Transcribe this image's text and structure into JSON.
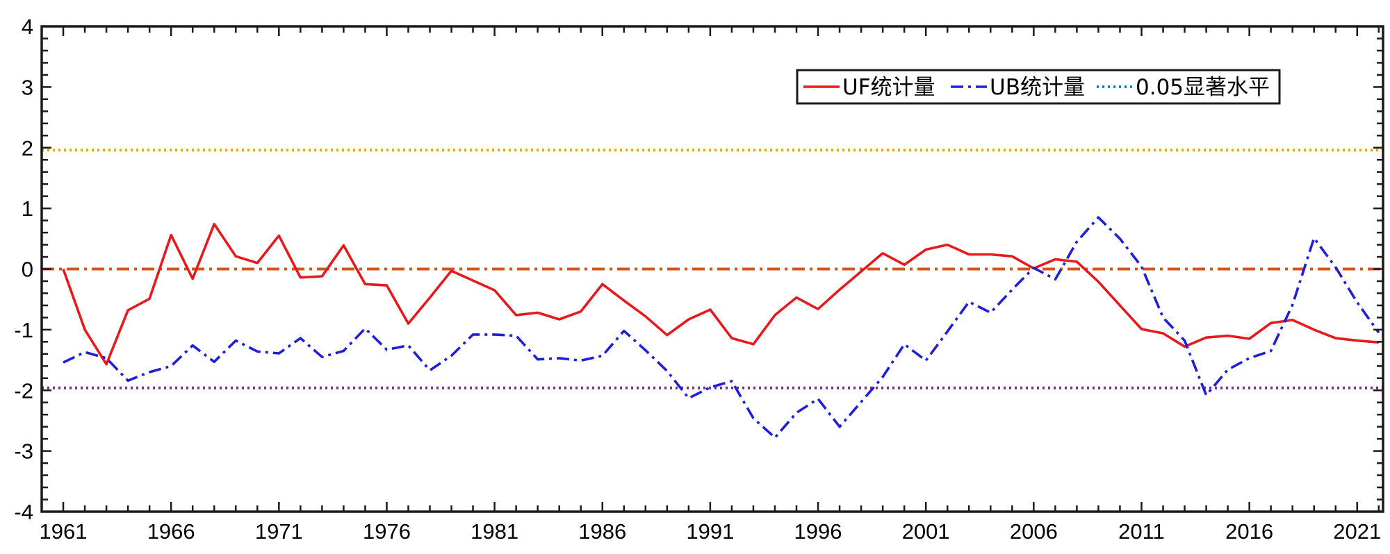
{
  "chart_data": {
    "type": "line",
    "title": "",
    "xlabel": "",
    "ylabel": "",
    "xlim": [
      1960,
      2022.2
    ],
    "ylim": [
      -4,
      4
    ],
    "x_ticks": [
      1961,
      1966,
      1971,
      1976,
      1981,
      1986,
      1991,
      1996,
      2001,
      2006,
      2011,
      2016,
      2021
    ],
    "x_tick_labels": [
      "1961",
      "1966",
      "1971",
      "1976",
      "1981",
      "1986",
      "1991",
      "1996",
      "2001",
      "2006",
      "2011",
      "2016",
      "2021"
    ],
    "y_ticks": [
      -4,
      -3,
      -2,
      -1,
      0,
      1,
      2,
      3,
      4
    ],
    "y_tick_labels": [
      "-4",
      "-3",
      "-2",
      "-1",
      "0",
      "1",
      "2",
      "3",
      "4"
    ],
    "grid": false,
    "legend_position": "top-right",
    "x": [
      1961,
      1962,
      1963,
      1964,
      1965,
      1966,
      1967,
      1968,
      1969,
      1970,
      1971,
      1972,
      1973,
      1974,
      1975,
      1976,
      1977,
      1978,
      1979,
      1980,
      1981,
      1982,
      1983,
      1984,
      1985,
      1986,
      1987,
      1988,
      1989,
      1990,
      1991,
      1992,
      1993,
      1994,
      1995,
      1996,
      1997,
      1998,
      1999,
      2000,
      2001,
      2002,
      2003,
      2004,
      2005,
      2006,
      2007,
      2008,
      2009,
      2010,
      2011,
      2012,
      2013,
      2014,
      2015,
      2016,
      2017,
      2018,
      2019,
      2020,
      2021,
      2022
    ],
    "series": [
      {
        "name": "UF统计量",
        "color": "#e41a1c",
        "style": "solid",
        "values": [
          0.0,
          -1.0,
          -1.57,
          -0.68,
          -0.49,
          0.56,
          -0.16,
          0.74,
          0.21,
          0.1,
          0.55,
          -0.14,
          -0.12,
          0.39,
          -0.25,
          -0.27,
          -0.9,
          -0.47,
          -0.03,
          -0.19,
          -0.35,
          -0.76,
          -0.72,
          -0.83,
          -0.7,
          -0.25,
          -0.52,
          -0.78,
          -1.09,
          -0.83,
          -0.67,
          -1.14,
          -1.24,
          -0.76,
          -0.47,
          -0.66,
          -0.34,
          -0.04,
          0.26,
          0.07,
          0.32,
          0.4,
          0.24,
          0.24,
          0.21,
          0.01,
          0.16,
          0.12,
          -0.21,
          -0.6,
          -0.99,
          -1.06,
          -1.28,
          -1.13,
          -1.1,
          -1.15,
          -0.89,
          -0.84,
          -1.0,
          -1.14,
          -1.18,
          -1.21
        ]
      },
      {
        "name": "UB统计量",
        "color": "#1f1fd6",
        "style": "dashdot",
        "values": [
          -1.54,
          -1.37,
          -1.47,
          -1.84,
          -1.7,
          -1.6,
          -1.26,
          -1.53,
          -1.18,
          -1.36,
          -1.39,
          -1.14,
          -1.45,
          -1.35,
          -0.98,
          -1.33,
          -1.26,
          -1.67,
          -1.43,
          -1.08,
          -1.08,
          -1.1,
          -1.49,
          -1.47,
          -1.51,
          -1.43,
          -1.02,
          -1.34,
          -1.68,
          -2.13,
          -1.95,
          -1.85,
          -2.46,
          -2.78,
          -2.37,
          -2.14,
          -2.6,
          -2.19,
          -1.78,
          -1.24,
          -1.51,
          -1.03,
          -0.54,
          -0.72,
          -0.34,
          0.02,
          -0.17,
          0.45,
          0.85,
          0.5,
          0.04,
          -0.8,
          -1.18,
          -2.08,
          -1.66,
          -1.47,
          -1.35,
          -0.59,
          0.51,
          0.03,
          -0.55,
          -1.05
        ]
      }
    ],
    "reference_lines": [
      {
        "name": "0.05显著水平",
        "y": 1.96,
        "color": "#e6a817",
        "style": "dotted"
      },
      {
        "name": "0.05显著水平",
        "y": -1.96,
        "color": "#7b2d8e",
        "style": "dotted"
      },
      {
        "name": "zero",
        "y": 0,
        "color": "#d95319",
        "style": "dashdot"
      }
    ],
    "legend": [
      {
        "label": "UF统计量",
        "color": "#e41a1c",
        "style": "solid"
      },
      {
        "label": "UB统计量",
        "color": "#1f1fd6",
        "style": "dashdot"
      },
      {
        "label": "0.05显著水平",
        "color": "#0072bd",
        "style": "dotted"
      }
    ]
  }
}
